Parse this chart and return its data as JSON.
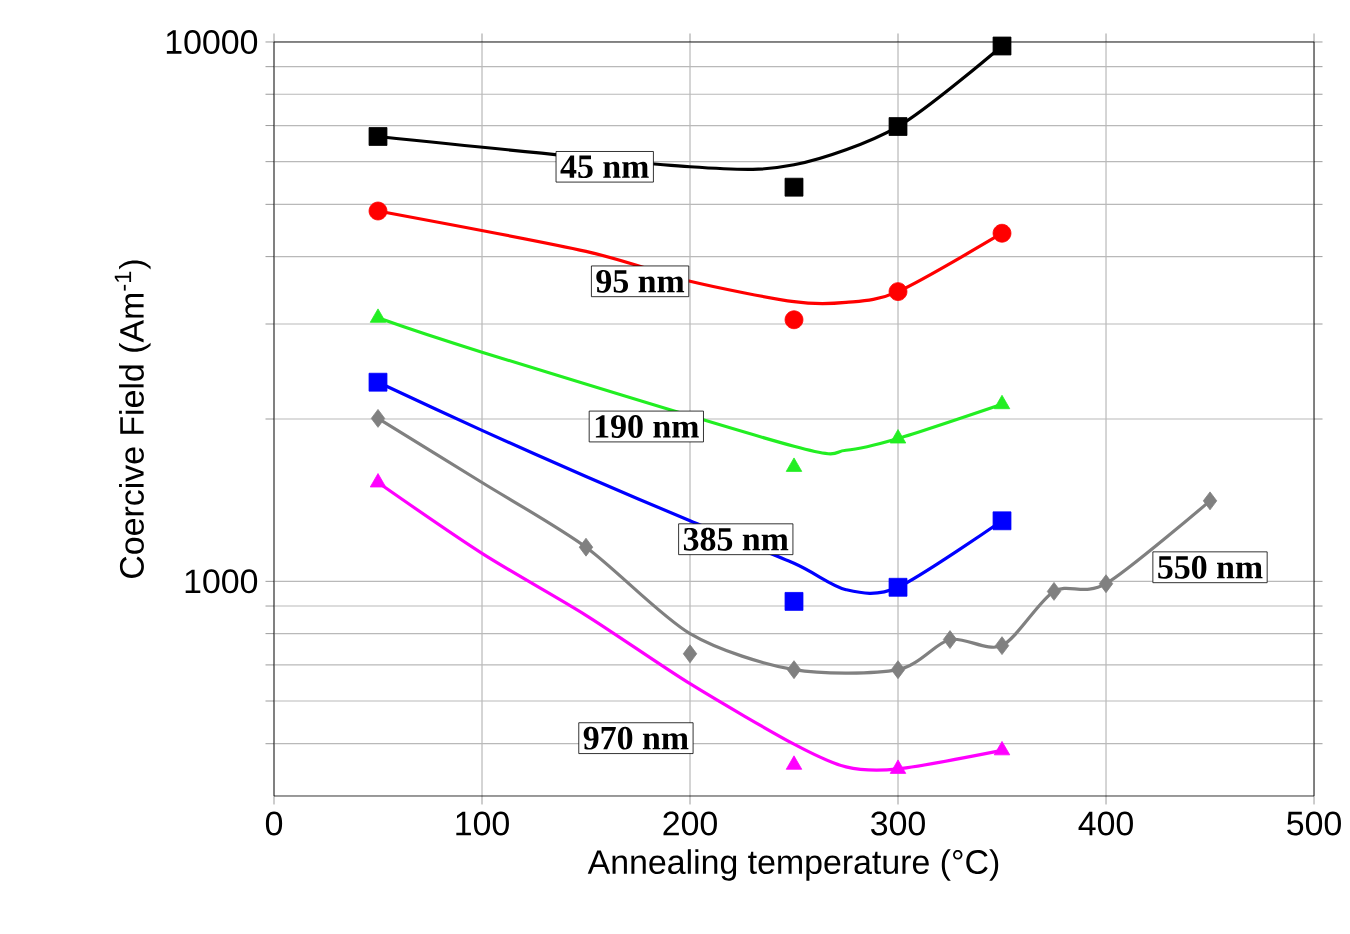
{
  "chart_data": {
    "type": "scatter",
    "xlabel": "Annealing temperature (°C)",
    "ylabel": "Coercive Field  (Am$^{-1}$)",
    "log": "y",
    "grid": true,
    "xlim": [
      0,
      500
    ],
    "xticks": [
      0,
      100,
      200,
      300,
      400,
      500
    ],
    "ylim": [
      400,
      10000
    ],
    "yticks": [
      {
        "value": 500,
        "label": null
      },
      {
        "value": 600,
        "label": null
      },
      {
        "value": 700,
        "label": null
      },
      {
        "value": 800,
        "label": null
      },
      {
        "value": 900,
        "label": null
      },
      1000,
      {
        "value": 2000,
        "label": null
      },
      {
        "value": 3000,
        "label": null
      },
      {
        "value": 4000,
        "label": null
      },
      {
        "value": 5000,
        "label": null
      },
      {
        "value": 6000,
        "label": null
      },
      {
        "value": 7000,
        "label": null
      },
      {
        "value": 8000,
        "label": null
      },
      {
        "value": 9000,
        "label": null
      },
      10000
    ],
    "series": [
      {
        "type": "line",
        "color": "#000000",
        "x": [
          50,
          200,
          250,
          300,
          350
        ],
        "values": [
          6680,
          5870,
          5920,
          6970,
          9830
        ]
      },
      {
        "type": "line",
        "color": "#ff0000",
        "x": [
          50,
          150,
          200,
          250,
          275,
          300,
          350
        ],
        "values": [
          4860,
          4090,
          3600,
          3300,
          3290,
          3445,
          4420
        ]
      },
      {
        "type": "line",
        "color": "#22ee22",
        "x": [
          50,
          100,
          250,
          275,
          300,
          350
        ],
        "values": [
          3080,
          2660,
          1780,
          1750,
          1840,
          2130
        ]
      },
      {
        "type": "line",
        "color": "#0000ff",
        "x": [
          50,
          100,
          150,
          200,
          250,
          275,
          300,
          350
        ],
        "values": [
          2340,
          1905,
          1565,
          1295,
          1080,
          965,
          975,
          1295
        ]
      },
      {
        "type": "line",
        "color": "#808080",
        "x": [
          50,
          100,
          150,
          200,
          250,
          300,
          325,
          350,
          375,
          400,
          450
        ],
        "values": [
          2005,
          1525,
          1157,
          800,
          686,
          686,
          780,
          760,
          958,
          990,
          1410
        ]
      },
      {
        "type": "line",
        "color": "#ff00ff",
        "x": [
          50,
          100,
          150,
          200,
          250,
          275,
          300,
          350
        ],
        "values": [
          1525,
          1127,
          865,
          646,
          499,
          453,
          449,
          486
        ]
      },
      {
        "marker": "square",
        "color": "#000000",
        "x": [
          50,
          250,
          300,
          350
        ],
        "values": [
          6680,
          5380,
          6970,
          9830
        ]
      },
      {
        "marker": "circle",
        "color": "#ff0000",
        "x": [
          50,
          250,
          300,
          350
        ],
        "values": [
          4860,
          3055,
          3445,
          4420
        ]
      },
      {
        "marker": "triangle",
        "color": "#22ee22",
        "x": [
          50,
          250,
          300,
          350
        ],
        "values": [
          3080,
          1630,
          1840,
          2130
        ]
      },
      {
        "marker": "square",
        "color": "#0000ff",
        "x": [
          50,
          250,
          300,
          350
        ],
        "values": [
          2340,
          918,
          975,
          1295
        ]
      },
      {
        "marker": "diamond",
        "color": "#808080",
        "x": [
          50,
          150,
          200,
          250,
          300,
          325,
          350,
          375,
          400,
          450
        ],
        "values": [
          2005,
          1157,
          734,
          686,
          686,
          780,
          760,
          958,
          990,
          1410
        ]
      },
      {
        "marker": "triangle",
        "color": "#ff00ff",
        "x": [
          50,
          250,
          300,
          350
        ],
        "values": [
          1525,
          457,
          449,
          486
        ]
      }
    ],
    "annotations": [
      "45 nm",
      "95 nm",
      "190 nm",
      "385 nm",
      "550 nm",
      "970 nm"
    ]
  }
}
